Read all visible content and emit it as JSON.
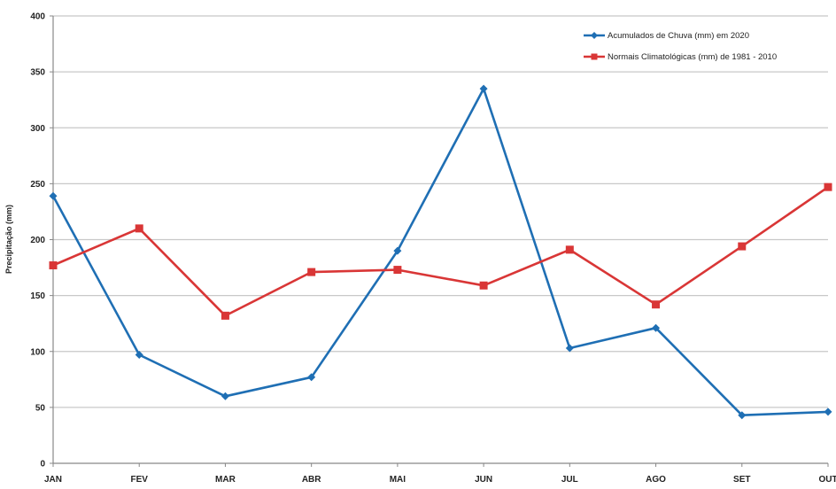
{
  "chart_data": {
    "type": "line",
    "title": "",
    "xlabel": "",
    "ylabel": "Precipitação (mm)",
    "categories": [
      "JAN",
      "FEV",
      "MAR",
      "ABR",
      "MAI",
      "JUN",
      "JUL",
      "AGO",
      "SET",
      "OUT"
    ],
    "ylim": [
      0,
      400
    ],
    "yticks": [
      0,
      50,
      100,
      150,
      200,
      250,
      300,
      350,
      400
    ],
    "grid": true,
    "legend_position": "top-right",
    "series": [
      {
        "name": "Acumulados de Chuva (mm) em 2020",
        "color": "#1f6fb4",
        "marker": "diamond",
        "values": [
          239,
          97,
          60,
          77,
          190,
          335,
          103,
          121,
          43,
          46
        ]
      },
      {
        "name": "Normais Climatológicas (mm) de 1981 - 2010",
        "color": "#d93636",
        "marker": "square",
        "values": [
          177,
          210,
          132,
          171,
          173,
          159,
          191,
          142,
          194,
          247
        ]
      }
    ]
  }
}
